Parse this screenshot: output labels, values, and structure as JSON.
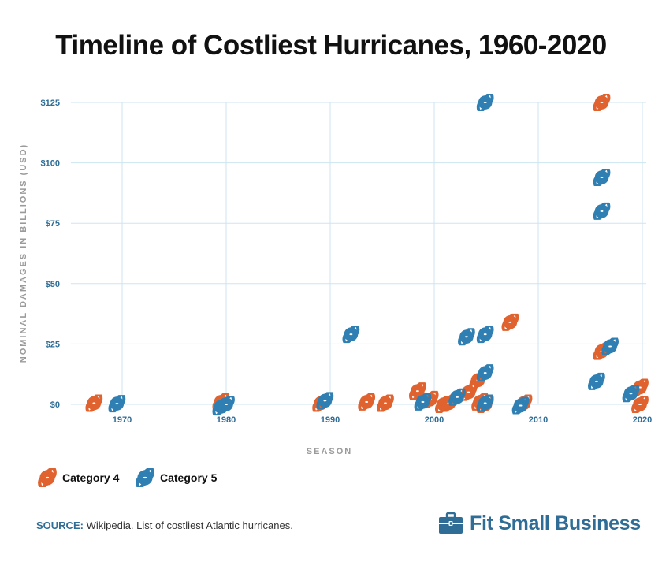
{
  "title": "Timeline of Costliest Hurricanes, 1960-2020",
  "colors": {
    "cat4": "#e0622e",
    "cat5": "#2f7fb3",
    "grid": "#cce6ef",
    "tick": "#2f6d96",
    "brand": "#2f6d96"
  },
  "source_key": "SOURCE:",
  "source_text": "Wikipedia. List of costliest Atlantic hurricanes.",
  "brand": {
    "name": "Fit Small Business",
    "icon": "briefcase-icon"
  },
  "chart_data": {
    "type": "scatter",
    "title": "Timeline of Costliest Hurricanes, 1960-2020",
    "xlabel": "SEASON",
    "ylabel": "NOMINAL DAMAGES IN BILLIONS (USD)",
    "xlim": [
      1965,
      2020
    ],
    "ylim": [
      0,
      125
    ],
    "xticks": [
      1970,
      1980,
      1990,
      2000,
      2010,
      2020
    ],
    "xtick_labels": [
      "1970",
      "1980",
      "1990",
      "2000",
      "2010",
      "2020"
    ],
    "yticks": [
      0,
      25,
      50,
      75,
      100,
      125
    ],
    "ytick_labels": [
      "$0",
      "$25",
      "$50",
      "$75",
      "$100",
      "$125"
    ],
    "grid": true,
    "legend_position": "bottom-left",
    "marker": "hurricane-symbol",
    "series": [
      {
        "name": "Category 4",
        "color": "#e0622e",
        "points": [
          {
            "x": 1967.3,
            "y": 0.5
          },
          {
            "x": 1979.5,
            "y": 1
          },
          {
            "x": 1989.1,
            "y": 0.5
          },
          {
            "x": 1993.5,
            "y": 1
          },
          {
            "x": 1995.3,
            "y": 0.5
          },
          {
            "x": 1998.4,
            "y": 5.5
          },
          {
            "x": 1999.6,
            "y": 2
          },
          {
            "x": 2000.9,
            "y": 0
          },
          {
            "x": 2001.4,
            "y": 0.5
          },
          {
            "x": 2003.3,
            "y": 5
          },
          {
            "x": 2004.2,
            "y": 10
          },
          {
            "x": 2004.4,
            "y": 1
          },
          {
            "x": 2004.9,
            "y": 0
          },
          {
            "x": 2007.3,
            "y": 34
          },
          {
            "x": 2008.6,
            "y": 0.5
          },
          {
            "x": 2016.1,
            "y": 125
          },
          {
            "x": 2016.1,
            "y": 22
          },
          {
            "x": 2020.0,
            "y": 7
          },
          {
            "x": 2020.0,
            "y": 0
          }
        ]
      },
      {
        "name": "Category 5",
        "color": "#2f7fb3",
        "points": [
          {
            "x": 1969.5,
            "y": 0.3
          },
          {
            "x": 1979.5,
            "y": -1
          },
          {
            "x": 1980.0,
            "y": 0
          },
          {
            "x": 1989.5,
            "y": 1.5
          },
          {
            "x": 1992.0,
            "y": 29
          },
          {
            "x": 1998.9,
            "y": 1
          },
          {
            "x": 2002.2,
            "y": 3
          },
          {
            "x": 2003.1,
            "y": 28
          },
          {
            "x": 2004.9,
            "y": 125
          },
          {
            "x": 2004.9,
            "y": 29
          },
          {
            "x": 2004.9,
            "y": 13
          },
          {
            "x": 2004.9,
            "y": 0.5
          },
          {
            "x": 2008.3,
            "y": -0.5
          },
          {
            "x": 2015.6,
            "y": 9.5
          },
          {
            "x": 2016.1,
            "y": 94
          },
          {
            "x": 2016.1,
            "y": 80
          },
          {
            "x": 2016.9,
            "y": 24
          },
          {
            "x": 2018.9,
            "y": 4.5
          }
        ]
      }
    ]
  }
}
